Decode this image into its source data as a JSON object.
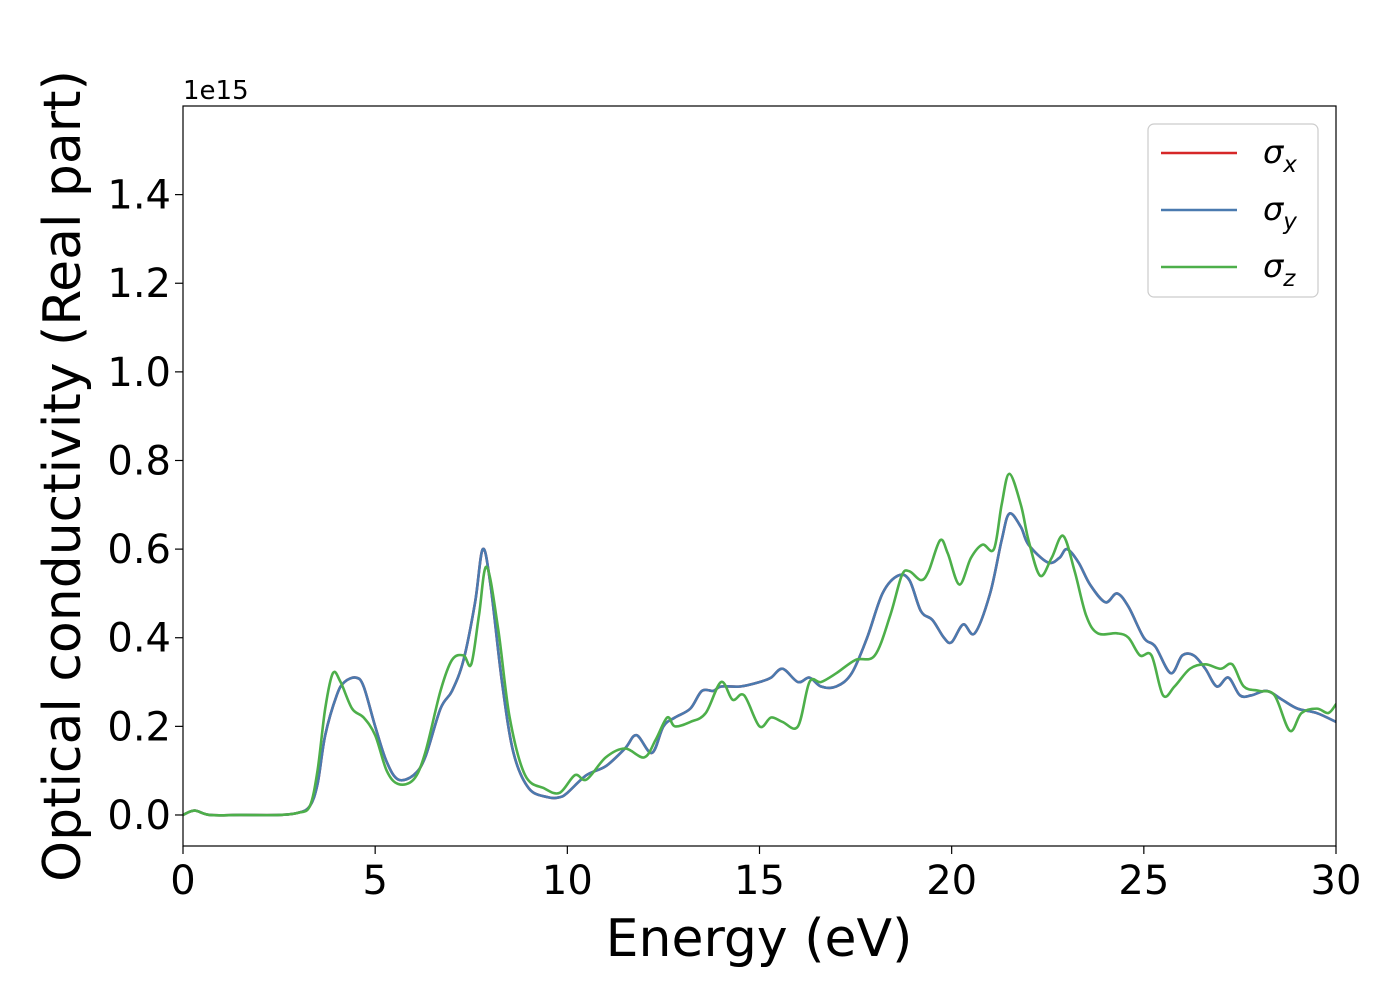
{
  "chart_data": {
    "type": "line",
    "title": "",
    "xlabel": "Energy (eV)",
    "ylabel": "Optical conductivity (Real part)",
    "y_offset_label": "1e15",
    "xlim": [
      0,
      30
    ],
    "ylim": [
      -0.07,
      1.6
    ],
    "xticks": [
      0,
      5,
      10,
      15,
      20,
      25,
      30
    ],
    "yticks": [
      0.0,
      0.2,
      0.4,
      0.6,
      0.8,
      1.0,
      1.2,
      1.4
    ],
    "ytick_labels": [
      "0.0",
      "0.2",
      "0.4",
      "0.6",
      "0.8",
      "1.0",
      "1.2",
      "1.4"
    ],
    "grid": false,
    "legend_position": "top-right",
    "series": [
      {
        "name": "σ",
        "subscript": "x",
        "color": "#d62728",
        "x": [
          0,
          0.3,
          0.7,
          1.5,
          2.5,
          3.0,
          3.3,
          3.5,
          3.7,
          4.0,
          4.2,
          4.5,
          4.7,
          5.0,
          5.3,
          5.6,
          6.0,
          6.3,
          6.7,
          7.0,
          7.3,
          7.6,
          7.8,
          8.0,
          8.3,
          8.6,
          9.0,
          9.5,
          9.8,
          10.0,
          10.5,
          11.0,
          11.5,
          11.8,
          12.2,
          12.5,
          12.8,
          13.2,
          13.5,
          13.8,
          14.0,
          14.5,
          15.0,
          15.3,
          15.6,
          16.0,
          16.3,
          16.6,
          17.0,
          17.4,
          17.8,
          18.2,
          18.6,
          18.9,
          19.2,
          19.5,
          19.8,
          20.0,
          20.3,
          20.6,
          21.0,
          21.3,
          21.5,
          21.8,
          22.0,
          22.5,
          22.8,
          23.0,
          23.3,
          23.6,
          24.0,
          24.3,
          24.6,
          25.0,
          25.3,
          25.7,
          26.0,
          26.3,
          26.6,
          26.9,
          27.2,
          27.5,
          27.8,
          28.2,
          28.6,
          29.0,
          29.5,
          30.0
        ],
        "values": [
          0.0,
          0.01,
          0.0,
          0.0,
          0.0,
          0.005,
          0.02,
          0.07,
          0.18,
          0.27,
          0.3,
          0.31,
          0.29,
          0.2,
          0.12,
          0.08,
          0.09,
          0.13,
          0.24,
          0.28,
          0.35,
          0.48,
          0.6,
          0.52,
          0.3,
          0.14,
          0.06,
          0.04,
          0.04,
          0.05,
          0.09,
          0.11,
          0.15,
          0.18,
          0.14,
          0.2,
          0.22,
          0.24,
          0.28,
          0.28,
          0.29,
          0.29,
          0.3,
          0.31,
          0.33,
          0.3,
          0.31,
          0.29,
          0.29,
          0.32,
          0.4,
          0.5,
          0.54,
          0.53,
          0.46,
          0.44,
          0.4,
          0.39,
          0.43,
          0.41,
          0.5,
          0.62,
          0.68,
          0.65,
          0.61,
          0.57,
          0.58,
          0.6,
          0.57,
          0.52,
          0.48,
          0.5,
          0.47,
          0.4,
          0.38,
          0.32,
          0.36,
          0.36,
          0.33,
          0.29,
          0.31,
          0.27,
          0.27,
          0.28,
          0.26,
          0.24,
          0.23,
          0.21
        ]
      },
      {
        "name": "σ",
        "subscript": "y",
        "color": "#4a7aaf",
        "x": [
          0,
          0.3,
          0.7,
          1.5,
          2.5,
          3.0,
          3.3,
          3.5,
          3.7,
          4.0,
          4.2,
          4.5,
          4.7,
          5.0,
          5.3,
          5.6,
          6.0,
          6.3,
          6.7,
          7.0,
          7.3,
          7.6,
          7.8,
          8.0,
          8.3,
          8.6,
          9.0,
          9.5,
          9.8,
          10.0,
          10.5,
          11.0,
          11.5,
          11.8,
          12.2,
          12.5,
          12.8,
          13.2,
          13.5,
          13.8,
          14.0,
          14.5,
          15.0,
          15.3,
          15.6,
          16.0,
          16.3,
          16.6,
          17.0,
          17.4,
          17.8,
          18.2,
          18.6,
          18.9,
          19.2,
          19.5,
          19.8,
          20.0,
          20.3,
          20.6,
          21.0,
          21.3,
          21.5,
          21.8,
          22.0,
          22.5,
          22.8,
          23.0,
          23.3,
          23.6,
          24.0,
          24.3,
          24.6,
          25.0,
          25.3,
          25.7,
          26.0,
          26.3,
          26.6,
          26.9,
          27.2,
          27.5,
          27.8,
          28.2,
          28.6,
          29.0,
          29.5,
          30.0
        ],
        "values": [
          0.0,
          0.01,
          0.0,
          0.0,
          0.0,
          0.005,
          0.02,
          0.07,
          0.18,
          0.27,
          0.3,
          0.31,
          0.29,
          0.2,
          0.12,
          0.08,
          0.09,
          0.13,
          0.24,
          0.28,
          0.35,
          0.48,
          0.6,
          0.52,
          0.3,
          0.14,
          0.06,
          0.04,
          0.04,
          0.05,
          0.09,
          0.11,
          0.15,
          0.18,
          0.14,
          0.2,
          0.22,
          0.24,
          0.28,
          0.28,
          0.29,
          0.29,
          0.3,
          0.31,
          0.33,
          0.3,
          0.31,
          0.29,
          0.29,
          0.32,
          0.4,
          0.5,
          0.54,
          0.53,
          0.46,
          0.44,
          0.4,
          0.39,
          0.43,
          0.41,
          0.5,
          0.62,
          0.68,
          0.65,
          0.61,
          0.57,
          0.58,
          0.6,
          0.57,
          0.52,
          0.48,
          0.5,
          0.47,
          0.4,
          0.38,
          0.32,
          0.36,
          0.36,
          0.33,
          0.29,
          0.31,
          0.27,
          0.27,
          0.28,
          0.26,
          0.24,
          0.23,
          0.21
        ]
      },
      {
        "name": "σ",
        "subscript": "z",
        "color": "#4daf4a",
        "x": [
          0,
          0.3,
          0.7,
          1.5,
          2.5,
          3.0,
          3.3,
          3.5,
          3.7,
          3.9,
          4.1,
          4.4,
          4.7,
          5.0,
          5.3,
          5.6,
          6.0,
          6.3,
          6.7,
          7.0,
          7.3,
          7.5,
          7.7,
          7.9,
          8.2,
          8.5,
          8.9,
          9.4,
          9.8,
          10.2,
          10.5,
          11.0,
          11.5,
          12.0,
          12.3,
          12.6,
          12.8,
          13.2,
          13.6,
          14.0,
          14.3,
          14.6,
          15.0,
          15.3,
          15.6,
          16.0,
          16.3,
          16.6,
          17.0,
          17.5,
          18.0,
          18.4,
          18.7,
          18.9,
          19.2,
          19.4,
          19.7,
          19.9,
          20.2,
          20.5,
          20.8,
          21.1,
          21.3,
          21.5,
          21.8,
          22.0,
          22.3,
          22.6,
          22.9,
          23.2,
          23.5,
          23.8,
          24.3,
          24.6,
          24.9,
          25.2,
          25.5,
          25.8,
          26.2,
          26.6,
          27.0,
          27.3,
          27.6,
          28.0,
          28.4,
          28.8,
          29.1,
          29.5,
          29.8,
          30.0
        ],
        "values": [
          0.0,
          0.01,
          0.0,
          0.0,
          0.0,
          0.005,
          0.02,
          0.1,
          0.24,
          0.32,
          0.3,
          0.24,
          0.22,
          0.18,
          0.1,
          0.07,
          0.08,
          0.14,
          0.28,
          0.35,
          0.36,
          0.34,
          0.45,
          0.56,
          0.42,
          0.22,
          0.09,
          0.06,
          0.05,
          0.09,
          0.08,
          0.13,
          0.15,
          0.13,
          0.17,
          0.22,
          0.2,
          0.21,
          0.23,
          0.3,
          0.26,
          0.27,
          0.2,
          0.22,
          0.21,
          0.2,
          0.3,
          0.3,
          0.32,
          0.35,
          0.36,
          0.45,
          0.54,
          0.55,
          0.53,
          0.55,
          0.62,
          0.59,
          0.52,
          0.58,
          0.61,
          0.6,
          0.7,
          0.77,
          0.7,
          0.62,
          0.54,
          0.58,
          0.63,
          0.55,
          0.45,
          0.41,
          0.41,
          0.4,
          0.36,
          0.36,
          0.27,
          0.29,
          0.33,
          0.34,
          0.33,
          0.34,
          0.29,
          0.28,
          0.27,
          0.19,
          0.23,
          0.24,
          0.23,
          0.25
        ]
      }
    ]
  }
}
